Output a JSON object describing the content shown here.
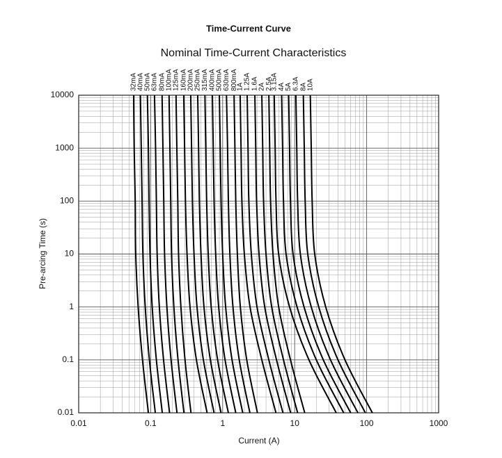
{
  "chart_data": {
    "type": "line",
    "title": "Time-Current Curve",
    "subtitle": "Nominal Time-Current Characteristics",
    "x_label": "Current (A)",
    "y_label": "Pre-arcing Time (s)",
    "x_scale": "log",
    "y_scale": "log",
    "grid": true,
    "color": "#000000",
    "xlim": [
      0.01,
      1000
    ],
    "ylim": [
      0.01,
      10000
    ],
    "xticks": [
      0.01,
      0.1,
      1,
      10,
      100,
      1000
    ],
    "yticks": [
      0.01,
      0.1,
      1,
      10,
      100,
      1000,
      10000
    ],
    "xminorticks": [
      0.02,
      0.03,
      0.04,
      0.05,
      0.06,
      0.07,
      0.08,
      0.09,
      0.2,
      0.3,
      0.4,
      0.5,
      0.6,
      0.7,
      0.8,
      0.9,
      2,
      3,
      4,
      5,
      6,
      7,
      8,
      9,
      20,
      30,
      40,
      50,
      60,
      70,
      80,
      90,
      200,
      300,
      400,
      500,
      600,
      700,
      800,
      900
    ],
    "yminorticks": [
      0.02,
      0.03,
      0.04,
      0.05,
      0.06,
      0.07,
      0.08,
      0.09,
      0.2,
      0.3,
      0.4,
      0.5,
      0.6,
      0.7,
      0.8,
      0.9,
      2,
      3,
      4,
      5,
      6,
      7,
      8,
      9,
      20,
      30,
      40,
      50,
      60,
      70,
      80,
      90,
      200,
      300,
      400,
      500,
      600,
      700,
      800,
      900,
      2000,
      3000,
      4000,
      5000,
      6000,
      7000,
      8000,
      9000
    ],
    "y": [
      10000,
      1000,
      100,
      10,
      1,
      0.1,
      0.01
    ],
    "series": [
      {
        "name": "32mA",
        "x": [
          0.058,
          0.059,
          0.061,
          0.062,
          0.067,
          0.077,
          0.093
        ]
      },
      {
        "name": "40mA",
        "x": [
          0.072,
          0.074,
          0.076,
          0.078,
          0.084,
          0.096,
          0.116
        ]
      },
      {
        "name": "50mA",
        "x": [
          0.09,
          0.093,
          0.095,
          0.098,
          0.105,
          0.12,
          0.145
        ]
      },
      {
        "name": "63mA",
        "x": [
          0.113,
          0.117,
          0.12,
          0.123,
          0.132,
          0.151,
          0.183
        ]
      },
      {
        "name": "80mA",
        "x": [
          0.144,
          0.148,
          0.152,
          0.156,
          0.168,
          0.192,
          0.232
        ]
      },
      {
        "name": "100mA",
        "x": [
          0.18,
          0.185,
          0.19,
          0.195,
          0.21,
          0.24,
          0.29
        ]
      },
      {
        "name": "125mA",
        "x": [
          0.225,
          0.231,
          0.238,
          0.244,
          0.263,
          0.3,
          0.363
        ]
      },
      {
        "name": "160mA",
        "x": [
          0.288,
          0.296,
          0.304,
          0.32,
          0.352,
          0.432,
          0.608
        ]
      },
      {
        "name": "200mA",
        "x": [
          0.36,
          0.37,
          0.38,
          0.4,
          0.44,
          0.54,
          0.76
        ]
      },
      {
        "name": "250mA",
        "x": [
          0.45,
          0.463,
          0.475,
          0.5,
          0.55,
          0.675,
          0.95
        ]
      },
      {
        "name": "315mA",
        "x": [
          0.567,
          0.583,
          0.599,
          0.63,
          0.693,
          0.851,
          1.2
        ]
      },
      {
        "name": "400mA",
        "x": [
          0.72,
          0.74,
          0.76,
          0.8,
          0.88,
          1.08,
          1.52
        ]
      },
      {
        "name": "500mA",
        "x": [
          0.9,
          0.925,
          0.95,
          1.0,
          1.1,
          1.35,
          1.9
        ]
      },
      {
        "name": "630mA",
        "x": [
          1.13,
          1.17,
          1.2,
          1.26,
          1.39,
          1.7,
          2.39
        ]
      },
      {
        "name": "800mA",
        "x": [
          1.44,
          1.48,
          1.52,
          1.6,
          1.76,
          2.16,
          3.04
        ]
      },
      {
        "name": "1A",
        "x": [
          1.75,
          1.8,
          1.85,
          2.0,
          2.4,
          3.5,
          5.5
        ]
      },
      {
        "name": "1.25A",
        "x": [
          2.19,
          2.25,
          2.31,
          2.5,
          3.0,
          4.38,
          6.88
        ]
      },
      {
        "name": "1.6A",
        "x": [
          2.8,
          2.88,
          2.96,
          3.2,
          3.84,
          5.6,
          8.8
        ]
      },
      {
        "name": "2A",
        "x": [
          3.5,
          3.6,
          3.7,
          4.0,
          4.8,
          7.0,
          11
        ]
      },
      {
        "name": "2.5A",
        "x": [
          4.38,
          4.5,
          4.63,
          5.0,
          6.0,
          8.75,
          13.8
        ]
      },
      {
        "name": "3.15A",
        "x": [
          5.2,
          5.36,
          5.51,
          5.99,
          8.5,
          15.8,
          37.8
        ]
      },
      {
        "name": "4A",
        "x": [
          6.6,
          6.8,
          7.0,
          7.6,
          10.8,
          20,
          48
        ]
      },
      {
        "name": "5A",
        "x": [
          8.25,
          8.5,
          8.75,
          9.5,
          13.5,
          25,
          60
        ]
      },
      {
        "name": "6.3A",
        "x": [
          10.4,
          10.7,
          11,
          12,
          17,
          31.5,
          75.6
        ]
      },
      {
        "name": "8A",
        "x": [
          13.2,
          13.6,
          14,
          15.2,
          21.6,
          40,
          96
        ]
      },
      {
        "name": "10A",
        "x": [
          16.5,
          17,
          17.5,
          19,
          27,
          50,
          120
        ]
      }
    ]
  }
}
